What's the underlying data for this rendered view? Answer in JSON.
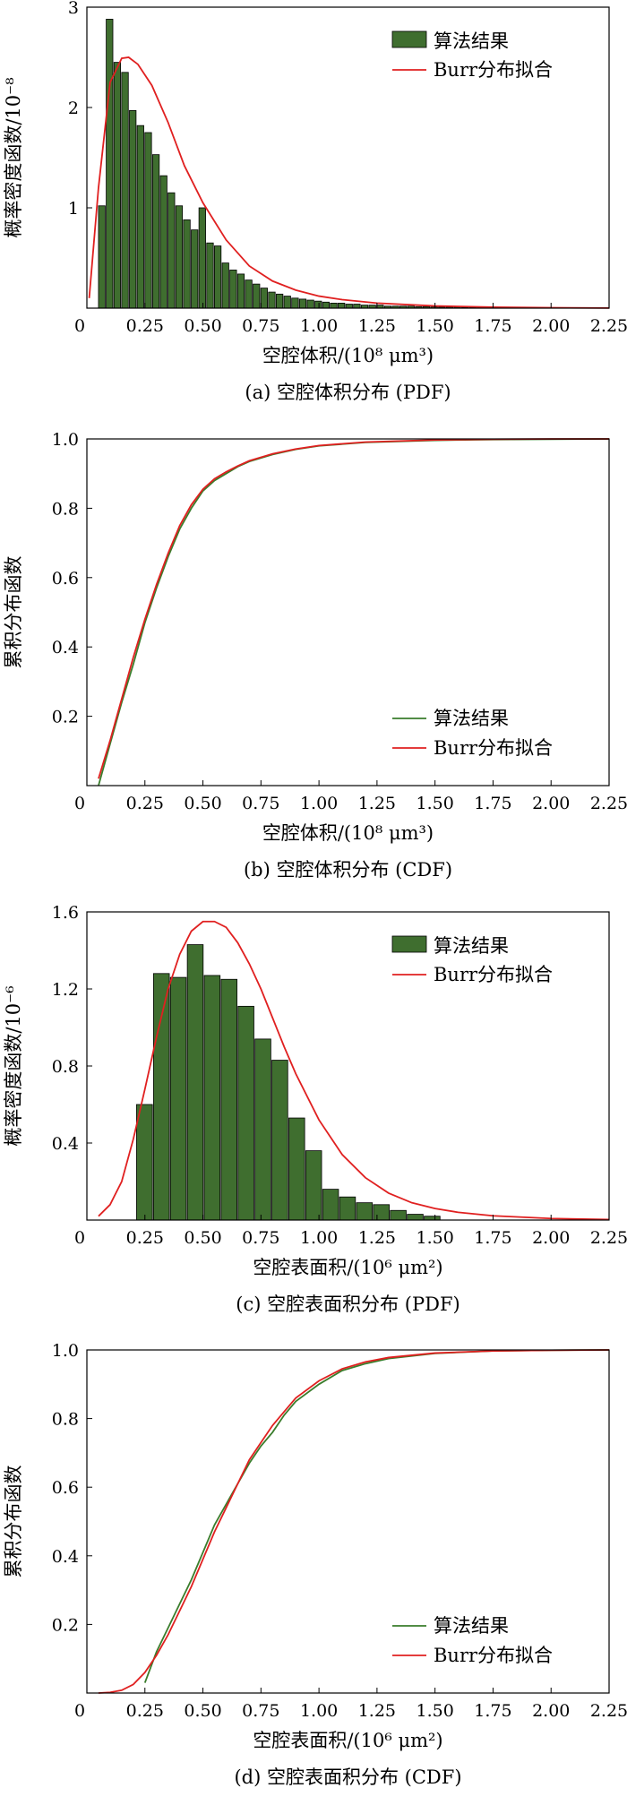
{
  "chart_data": [
    {
      "id": "a",
      "type": "bar+line",
      "caption": "(a) 空腔体积分布 (PDF)",
      "xlabel": "空腔体积/(10⁸ μm³)",
      "ylabel": "概率密度函数/10⁻⁸",
      "xlim": [
        0,
        2.25
      ],
      "ylim": [
        0,
        3
      ],
      "xticks": [
        "0",
        "0.25",
        "0.50",
        "0.75",
        "1.00",
        "1.25",
        "1.50",
        "1.75",
        "2.00",
        "2.25"
      ],
      "yticks": [
        {
          "v": 1,
          "label": "1"
        },
        {
          "v": 2,
          "label": "2"
        },
        {
          "v": 3,
          "label": "3"
        }
      ],
      "legend": {
        "position": "top-right",
        "bar": "算法结果",
        "line": "Burr分布拟合"
      },
      "bin_width": 0.0333,
      "bins": {
        "start": 0.0167,
        "values": [
          0,
          1.02,
          2.88,
          2.45,
          2.35,
          1.97,
          1.82,
          1.75,
          1.53,
          1.32,
          1.15,
          1.02,
          0.88,
          0.78,
          1.0,
          0.65,
          0.62,
          0.45,
          0.38,
          0.34,
          0.28,
          0.24,
          0.2,
          0.16,
          0.14,
          0.12,
          0.1,
          0.09,
          0.08,
          0.07,
          0.06,
          0.05,
          0.05,
          0.04,
          0.04,
          0.03,
          0.03,
          0.03,
          0.02,
          0.02,
          0.02,
          0.02,
          0.015,
          0.015,
          0.012,
          0.01,
          0.01,
          0.01,
          0.008,
          0.008,
          0.007,
          0.006,
          0.005,
          0.005,
          0.004,
          0.004,
          0.003,
          0.003,
          0.003,
          0.002,
          0.002,
          0.002
        ]
      },
      "fit": {
        "name": "Burr分布拟合",
        "x": [
          0.01,
          0.05,
          0.1,
          0.15,
          0.18,
          0.22,
          0.28,
          0.35,
          0.42,
          0.5,
          0.6,
          0.7,
          0.8,
          0.9,
          1.0,
          1.1,
          1.25,
          1.5,
          1.75,
          2.0,
          2.25
        ],
        "y": [
          0.1,
          1.2,
          2.25,
          2.49,
          2.5,
          2.43,
          2.22,
          1.85,
          1.42,
          1.05,
          0.68,
          0.42,
          0.27,
          0.18,
          0.12,
          0.085,
          0.05,
          0.022,
          0.01,
          0.004,
          0.001
        ]
      }
    },
    {
      "id": "b",
      "type": "line",
      "caption": "(b) 空腔体积分布 (CDF)",
      "xlabel": "空腔体积/(10⁸ μm³)",
      "ylabel": "累积分布函数",
      "xlim": [
        0,
        2.25
      ],
      "ylim": [
        0,
        1
      ],
      "xticks": [
        "0",
        "0.25",
        "0.50",
        "0.75",
        "1.00",
        "1.25",
        "1.50",
        "1.75",
        "2.00",
        "2.25"
      ],
      "yticks": [
        {
          "v": 0.2,
          "label": "0.2"
        },
        {
          "v": 0.4,
          "label": "0.4"
        },
        {
          "v": 0.6,
          "label": "0.6"
        },
        {
          "v": 0.8,
          "label": "0.8"
        },
        {
          "v": 1.0,
          "label": "1.0"
        }
      ],
      "legend": {
        "position": "bottom-right"
      },
      "series": [
        {
          "name": "算法结果",
          "color": "#3a7d2c",
          "x": [
            0.05,
            0.1,
            0.15,
            0.2,
            0.25,
            0.3,
            0.35,
            0.4,
            0.45,
            0.5,
            0.55,
            0.6,
            0.65,
            0.7,
            0.8,
            0.9,
            1.0,
            1.2,
            1.5,
            1.75,
            2.0,
            2.25
          ],
          "y": [
            0.0,
            0.12,
            0.24,
            0.35,
            0.47,
            0.57,
            0.66,
            0.74,
            0.8,
            0.85,
            0.88,
            0.9,
            0.92,
            0.935,
            0.955,
            0.97,
            0.98,
            0.99,
            0.996,
            0.998,
            0.999,
            1.0
          ]
        },
        {
          "name": "Burr分布拟合",
          "color": "#e02020",
          "x": [
            0.05,
            0.1,
            0.15,
            0.2,
            0.25,
            0.3,
            0.35,
            0.4,
            0.45,
            0.5,
            0.55,
            0.6,
            0.65,
            0.7,
            0.8,
            0.9,
            1.0,
            1.2,
            1.5,
            1.75,
            2.0,
            2.25
          ],
          "y": [
            0.02,
            0.13,
            0.25,
            0.37,
            0.48,
            0.58,
            0.67,
            0.75,
            0.81,
            0.855,
            0.885,
            0.905,
            0.922,
            0.937,
            0.957,
            0.971,
            0.981,
            0.991,
            0.997,
            0.999,
            1.0,
            1.0
          ]
        }
      ]
    },
    {
      "id": "c",
      "type": "bar+line",
      "caption": "(c) 空腔表面积分布 (PDF)",
      "xlabel": "空腔表面积/(10⁶ μm²)",
      "ylabel": "概率密度函数/10⁻⁶",
      "xlim": [
        0,
        2.25
      ],
      "ylim": [
        0,
        1.6
      ],
      "xticks": [
        "0",
        "0.25",
        "0.50",
        "0.75",
        "1.00",
        "1.25",
        "1.50",
        "1.75",
        "2.00",
        "2.25"
      ],
      "yticks": [
        {
          "v": 0.4,
          "label": "0.4"
        },
        {
          "v": 0.8,
          "label": "0.8"
        },
        {
          "v": 1.2,
          "label": "1.2"
        },
        {
          "v": 1.6,
          "label": "1.6"
        }
      ],
      "legend": {
        "position": "top-right",
        "bar": "算法结果",
        "line": "Burr分布拟合"
      },
      "bin_width": 0.0729,
      "bins": {
        "start": 0.214,
        "values": [
          0.6,
          1.28,
          1.26,
          1.43,
          1.27,
          1.25,
          1.11,
          0.94,
          0.83,
          0.53,
          0.36,
          0.16,
          0.12,
          0.09,
          0.08,
          0.05,
          0.03,
          0.02
        ]
      },
      "fit": {
        "name": "Burr分布拟合",
        "x": [
          0.05,
          0.1,
          0.15,
          0.2,
          0.25,
          0.3,
          0.35,
          0.4,
          0.45,
          0.5,
          0.55,
          0.6,
          0.65,
          0.7,
          0.75,
          0.8,
          0.85,
          0.9,
          1.0,
          1.1,
          1.2,
          1.3,
          1.4,
          1.5,
          1.6,
          1.75,
          2.0,
          2.25
        ],
        "y": [
          0.02,
          0.08,
          0.2,
          0.42,
          0.68,
          0.95,
          1.2,
          1.38,
          1.5,
          1.55,
          1.55,
          1.52,
          1.44,
          1.33,
          1.2,
          1.05,
          0.9,
          0.76,
          0.52,
          0.34,
          0.22,
          0.14,
          0.09,
          0.06,
          0.04,
          0.022,
          0.008,
          0.003
        ]
      }
    },
    {
      "id": "d",
      "type": "line",
      "caption": "(d) 空腔表面积分布 (CDF)",
      "xlabel": "空腔表面积/(10⁶ μm²)",
      "ylabel": "累积分布函数",
      "xlim": [
        0,
        2.25
      ],
      "ylim": [
        0,
        1
      ],
      "xticks": [
        "0",
        "0.25",
        "0.50",
        "0.75",
        "1.00",
        "1.25",
        "1.50",
        "1.75",
        "2.00",
        "2.25"
      ],
      "yticks": [
        {
          "v": 0.2,
          "label": "0.2"
        },
        {
          "v": 0.4,
          "label": "0.4"
        },
        {
          "v": 0.6,
          "label": "0.6"
        },
        {
          "v": 0.8,
          "label": "0.8"
        },
        {
          "v": 1.0,
          "label": "1.0"
        }
      ],
      "legend": {
        "position": "bottom-right"
      },
      "series": [
        {
          "name": "算法结果",
          "color": "#3a7d2c",
          "x": [
            0.25,
            0.3,
            0.35,
            0.4,
            0.45,
            0.5,
            0.55,
            0.6,
            0.65,
            0.7,
            0.75,
            0.8,
            0.85,
            0.9,
            1.0,
            1.1,
            1.2,
            1.3,
            1.5,
            1.75,
            2.0,
            2.25
          ],
          "y": [
            0.03,
            0.12,
            0.19,
            0.26,
            0.33,
            0.41,
            0.49,
            0.55,
            0.61,
            0.67,
            0.72,
            0.76,
            0.81,
            0.85,
            0.9,
            0.94,
            0.96,
            0.975,
            0.99,
            0.997,
            0.999,
            1.0
          ]
        },
        {
          "name": "Burr分布拟合",
          "color": "#e02020",
          "x": [
            0.05,
            0.1,
            0.15,
            0.2,
            0.25,
            0.3,
            0.35,
            0.4,
            0.45,
            0.5,
            0.55,
            0.6,
            0.65,
            0.7,
            0.75,
            0.8,
            0.85,
            0.9,
            1.0,
            1.1,
            1.2,
            1.3,
            1.5,
            1.75,
            2.0,
            2.25
          ],
          "y": [
            0.0,
            0.002,
            0.008,
            0.025,
            0.06,
            0.11,
            0.17,
            0.24,
            0.31,
            0.39,
            0.47,
            0.54,
            0.61,
            0.68,
            0.73,
            0.78,
            0.82,
            0.86,
            0.91,
            0.945,
            0.965,
            0.978,
            0.991,
            0.997,
            0.999,
            1.0
          ]
        }
      ]
    }
  ],
  "legend": {
    "algorithm_label": "算法结果",
    "fit_label": "Burr分布拟合"
  },
  "colors": {
    "bar_fill": "#3f6e2f",
    "bar_stroke": "#000000",
    "algorithm_line": "#3a7d2c",
    "fit_line": "#e02020",
    "axis": "#000000"
  }
}
